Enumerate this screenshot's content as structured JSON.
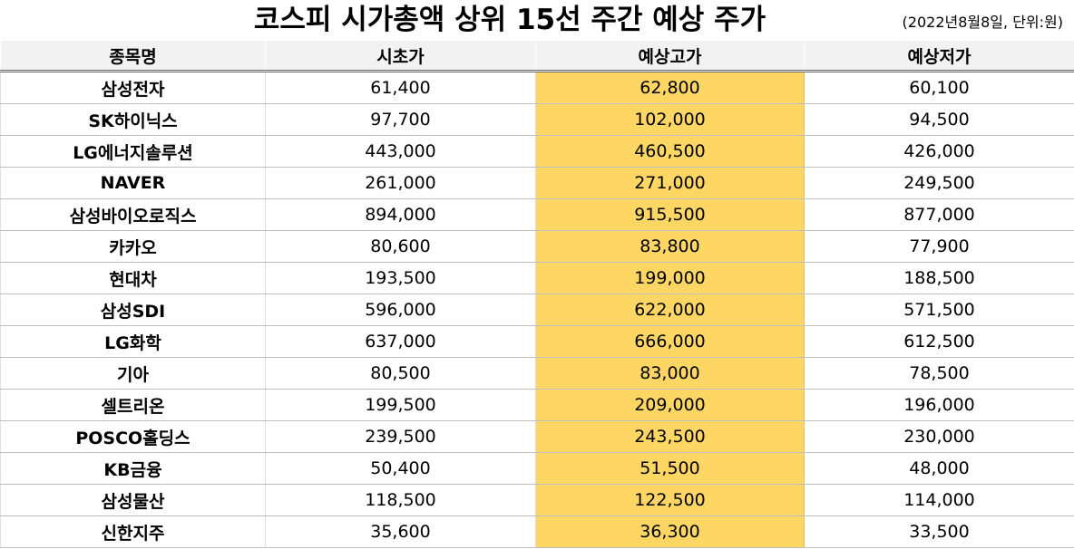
{
  "header": {
    "title": "코스피 시가총액 상위 15선 주간 예상 주가",
    "note": "(2022년8월8일, 단위:원)"
  },
  "colors": {
    "highlight": "#fdd664",
    "header_bg": "#f2f2f2"
  },
  "chart_data": {
    "type": "table",
    "columns": [
      "종목명",
      "시초가",
      "예상고가",
      "예상저가"
    ],
    "rows": [
      [
        "삼성전자",
        "61,400",
        "62,800",
        "60,100"
      ],
      [
        "SK하이닉스",
        "97,700",
        "102,000",
        "94,500"
      ],
      [
        "LG에너지솔루션",
        "443,000",
        "460,500",
        "426,000"
      ],
      [
        "NAVER",
        "261,000",
        "271,000",
        "249,500"
      ],
      [
        "삼성바이오로직스",
        "894,000",
        "915,500",
        "877,000"
      ],
      [
        "카카오",
        "80,600",
        "83,800",
        "77,900"
      ],
      [
        "현대차",
        "193,500",
        "199,000",
        "188,500"
      ],
      [
        "삼성SDI",
        "596,000",
        "622,000",
        "571,500"
      ],
      [
        "LG화학",
        "637,000",
        "666,000",
        "612,500"
      ],
      [
        "기아",
        "80,500",
        "83,000",
        "78,500"
      ],
      [
        "셀트리온",
        "199,500",
        "209,000",
        "196,000"
      ],
      [
        "POSCO홀딩스",
        "239,500",
        "243,500",
        "230,000"
      ],
      [
        "KB금융",
        "50,400",
        "51,500",
        "48,000"
      ],
      [
        "삼성물산",
        "118,500",
        "122,500",
        "114,000"
      ],
      [
        "신한지주",
        "35,600",
        "36,300",
        "33,500"
      ]
    ]
  }
}
